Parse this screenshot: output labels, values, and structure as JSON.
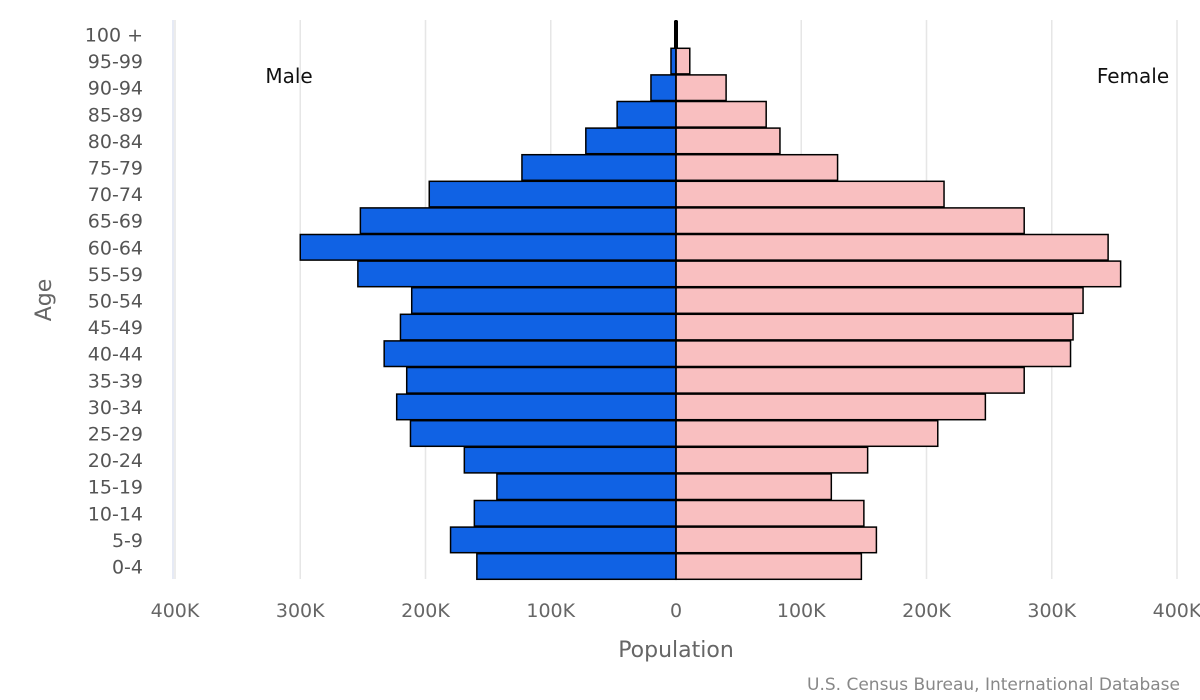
{
  "chart_data": {
    "type": "bar",
    "orientation": "horizontal",
    "layout": "population-pyramid",
    "categories": [
      "0-4",
      "5-9",
      "10-14",
      "15-19",
      "20-24",
      "25-29",
      "30-34",
      "35-39",
      "40-44",
      "45-49",
      "50-54",
      "55-59",
      "60-64",
      "65-69",
      "70-74",
      "75-79",
      "80-84",
      "85-89",
      "90-94",
      "95-99",
      "100 +"
    ],
    "series": [
      {
        "name": "Male",
        "color": "#1062e4",
        "values": [
          159000,
          180000,
          161000,
          143000,
          169000,
          212000,
          223000,
          215000,
          233000,
          220000,
          211000,
          254000,
          300000,
          252000,
          197000,
          123000,
          72000,
          47000,
          20000,
          4000,
          1000
        ]
      },
      {
        "name": "Female",
        "color": "#f9bfc0",
        "values": [
          148000,
          160000,
          150000,
          124000,
          153000,
          209000,
          247000,
          278000,
          315000,
          317000,
          325000,
          355000,
          345000,
          278000,
          214000,
          129000,
          83000,
          72000,
          40000,
          11000,
          1000
        ]
      }
    ],
    "xlabel": "Population",
    "ylabel": "Age",
    "xlim": [
      -400000,
      400000
    ],
    "xticks": [
      "400K",
      "300K",
      "200K",
      "100K",
      "0",
      "100K",
      "200K",
      "300K",
      "400K"
    ],
    "side_labels": {
      "left": "Male",
      "right": "Female"
    },
    "grid": true,
    "bar_outline_color": "#000000"
  },
  "credit": "U.S. Census Bureau, International Database"
}
